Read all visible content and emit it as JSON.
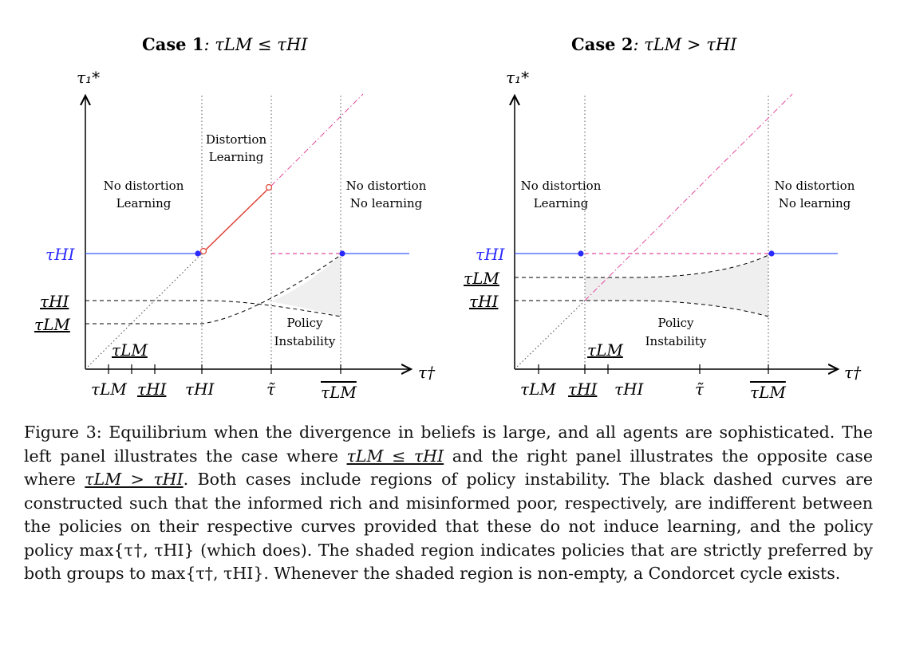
{
  "panels": [
    {
      "title_bold": "Case 1",
      "title_rest": ": τLM ≤ τHI",
      "y_axis_label": "τ₁*",
      "x_axis_label": "τ†",
      "region_left_line1": "No distortion",
      "region_left_line2": "Learning",
      "region_mid_line1": "Distortion",
      "region_mid_line2": "Learning",
      "region_right_line1": "No distortion",
      "region_right_line2": "No learning",
      "instability_line1": "Policy",
      "instability_line2": "Instability",
      "y_ticks": [
        "τHI",
        "τHI",
        "τLM"
      ],
      "x_ticks": [
        "τLM",
        "τHI",
        "τHI",
        "τ̃",
        "τLM"
      ],
      "inner_label": "τLM"
    },
    {
      "title_bold": "Case 2",
      "title_rest": ": τLM > τHI",
      "y_axis_label": "τ₁*",
      "x_axis_label": "τ†",
      "region_left_line1": "No distortion",
      "region_left_line2": "Learning",
      "region_right_line1": "No distortion",
      "region_right_line2": "No learning",
      "instability_line1": "Policy",
      "instability_line2": "Instability",
      "y_ticks": [
        "τHI",
        "τLM",
        "τHI"
      ],
      "x_ticks": [
        "τLM",
        "τHI",
        "τHI",
        "τ̃",
        "τLM"
      ],
      "inner_label": "τLM"
    }
  ],
  "caption": {
    "part1": "Figure 3: Equilibrium when the divergence in beliefs is large, and all agents are sophisticated. The left panel illustrates the case where ",
    "part2": " and the right panel illustrates the opposite case where ",
    "part3": ". Both cases include regions of policy instability. The black dashed curves are constructed such that the informed rich and misinformed poor, respectively, are indifferent between the policies on their respective curves provided that these do not induce learning, and the policy policy max{τ†, τHI} (which does). The shaded region indicates policies that are strictly preferred by both groups to max{τ†, τHI}. Whenever the shaded region is non-empty, a Condorcet cycle exists.",
    "cond1": "τLM ≤ τHI",
    "cond2": "τLM > τHI"
  },
  "colors": {
    "blue": "#3b5bff",
    "red": "#e0463a",
    "pink": "#e04a9a",
    "shade": "#eeeeee"
  }
}
